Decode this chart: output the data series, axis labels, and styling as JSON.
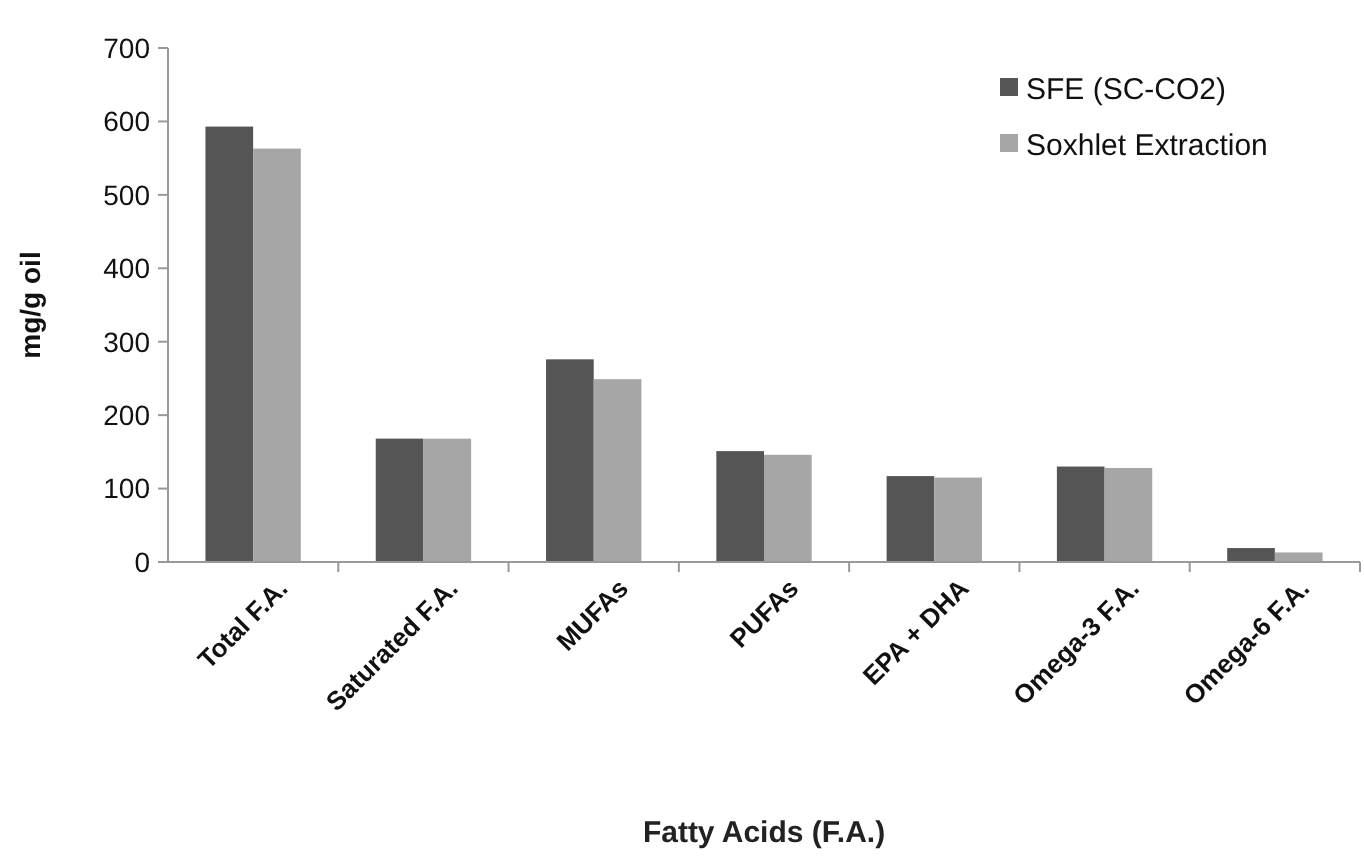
{
  "chart_data": {
    "type": "bar",
    "xlabel": "Fatty Acids (F.A.)",
    "ylabel": "mg/g oil",
    "categories": [
      "Total F.A.",
      "Saturated F.A.",
      "MUFAs",
      "PUFAs",
      "EPA + DHA",
      "Omega-3 F.A.",
      "Omega-6 F.A."
    ],
    "series": [
      {
        "name": "SFE (SC-CO2)",
        "color": "#555555",
        "values": [
          593,
          168,
          276,
          151,
          117,
          130,
          19
        ]
      },
      {
        "name": "Soxhlet Extraction",
        "color": "#a6a6a6",
        "values": [
          563,
          168,
          249,
          146,
          115,
          128,
          13
        ]
      }
    ],
    "ylim": [
      0,
      700
    ],
    "yticks": [
      0,
      100,
      200,
      300,
      400,
      500,
      600,
      700
    ],
    "grid": false,
    "legend": "top right"
  }
}
